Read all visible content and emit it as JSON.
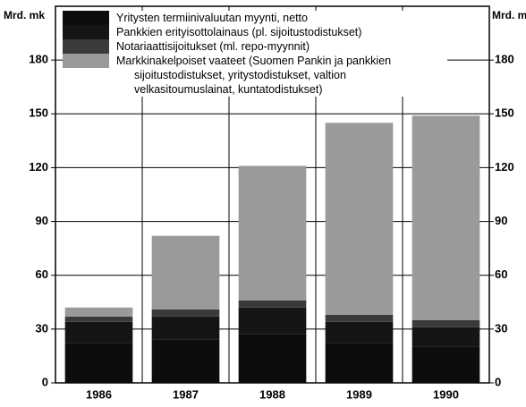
{
  "chart_data": {
    "type": "stacked_bar",
    "ylabel": "Mrd. mk",
    "y2label": "Mrd. mk",
    "categories": [
      "1986",
      "1987",
      "1988",
      "1989",
      "1990"
    ],
    "series": [
      {
        "name": "Yritysten termiinivaluutan myynti, netto",
        "color": "#0d0d0d",
        "values": [
          22,
          24,
          27,
          22,
          20
        ]
      },
      {
        "name": "Pankkien erityisottolainaus (pl. sijoitustodistukset)",
        "color": "#151515",
        "values": [
          12,
          13,
          15,
          12,
          11
        ]
      },
      {
        "name": "Notariaattisijoitukset (ml. repo-myynnit)",
        "color": "#3a3a3a",
        "values": [
          3,
          4,
          4,
          4,
          4
        ]
      },
      {
        "name": "Markkinakelpoiset vaateet (Suomen Pankin ja pankkien sijoitustodistukset, yritystodistukset, valtion velkasitoumuslainat, kuntatodistukset)",
        "color": "#9a9a9a",
        "values": [
          5,
          41,
          75,
          107,
          114
        ]
      }
    ],
    "ylim": [
      0,
      210
    ],
    "yticks": [
      0,
      30,
      60,
      90,
      120,
      150,
      180
    ],
    "grid": true
  }
}
